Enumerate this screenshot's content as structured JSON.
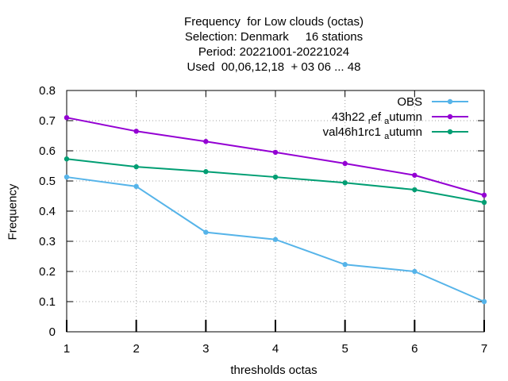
{
  "chart_data": {
    "type": "line",
    "title_lines": [
      "Frequency  for Low clouds (octas)",
      "Selection: Denmark     16 stations",
      "Period: 20221001-20221024",
      "Used  00,06,12,18  + 03 06 ... 48"
    ],
    "xlabel": "thresholds octas",
    "ylabel": "Frequency",
    "x": [
      1,
      2,
      3,
      4,
      5,
      6,
      7
    ],
    "xlim": [
      1,
      7
    ],
    "ylim": [
      0,
      0.8
    ],
    "xticks": [
      "1",
      "2",
      "3",
      "4",
      "5",
      "6",
      "7"
    ],
    "yticks": [
      "0",
      "0.1",
      "0.2",
      "0.3",
      "0.4",
      "0.5",
      "0.6",
      "0.7",
      "0.8"
    ],
    "grid": true,
    "legend_position": "top-right",
    "series": [
      {
        "name": "OBS",
        "color": "#56b4e9",
        "values": [
          0.513,
          0.482,
          0.33,
          0.306,
          0.223,
          0.2,
          0.1
        ]
      },
      {
        "name": "43h22 ref autumn",
        "label_parts": [
          "43h22 ",
          "r",
          "ef ",
          "a",
          "utumn"
        ],
        "color": "#9400d3",
        "values": [
          0.71,
          0.665,
          0.631,
          0.595,
          0.558,
          0.519,
          0.453
        ]
      },
      {
        "name": "val46h1rc1 autumn",
        "label_parts": [
          "val46h1rc1 ",
          "a",
          "utumn"
        ],
        "color": "#009e73",
        "values": [
          0.573,
          0.547,
          0.531,
          0.513,
          0.494,
          0.471,
          0.429
        ]
      }
    ]
  }
}
